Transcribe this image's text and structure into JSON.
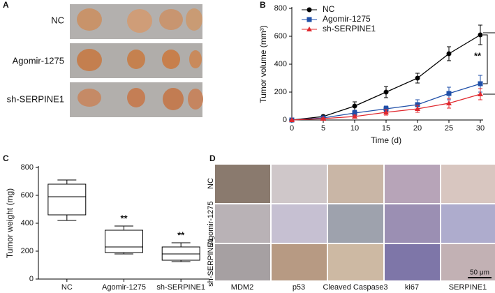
{
  "panel_a": {
    "label": "A",
    "rows": [
      "NC",
      "Agomir-1275",
      "sh-SERPINE1"
    ]
  },
  "chart_data": [
    {
      "type": "line",
      "panel": "B",
      "xlabel": "Time (d)",
      "ylabel": "Tumor volume (mm³)",
      "x": [
        0,
        5,
        10,
        15,
        20,
        25,
        30
      ],
      "xlim": [
        0,
        30
      ],
      "xticks": [
        0,
        5,
        10,
        15,
        20,
        25,
        30
      ],
      "ylim": [
        0,
        800
      ],
      "yticks": [
        0,
        200,
        400,
        600,
        800
      ],
      "legend": "upper left",
      "series": [
        {
          "name": "NC",
          "color": "#000000",
          "marker": "circle",
          "values": [
            0,
            25,
            100,
            200,
            300,
            475,
            610
          ],
          "errors": [
            0,
            10,
            30,
            40,
            35,
            50,
            70
          ]
        },
        {
          "name": "Agomir-1275",
          "color": "#1f4fa8",
          "marker": "square",
          "values": [
            0,
            15,
            50,
            80,
            110,
            190,
            260
          ],
          "errors": [
            0,
            8,
            20,
            20,
            35,
            45,
            60
          ]
        },
        {
          "name": "sh-SERPINE1",
          "color": "#e0282e",
          "marker": "triangle",
          "values": [
            0,
            10,
            25,
            55,
            80,
            120,
            185
          ],
          "errors": [
            0,
            5,
            10,
            20,
            25,
            35,
            40
          ]
        }
      ],
      "annotations": [
        "**",
        "**"
      ]
    },
    {
      "type": "box",
      "panel": "C",
      "ylabel": "Tumor weight (mg)",
      "categories": [
        "NC",
        "Agomir-1275",
        "sh-SERPINE1"
      ],
      "ylim": [
        0,
        800
      ],
      "yticks": [
        0,
        200,
        400,
        600,
        800
      ],
      "color": "#000000",
      "boxes": [
        {
          "min": 420,
          "q1": 460,
          "median": 590,
          "q3": 680,
          "max": 710
        },
        {
          "min": 180,
          "q1": 190,
          "median": 230,
          "q3": 350,
          "max": 380
        },
        {
          "min": 125,
          "q1": 135,
          "median": 180,
          "q3": 230,
          "max": 260
        }
      ],
      "annotations": [
        "**",
        "**"
      ]
    }
  ],
  "panel_d": {
    "label": "D",
    "rows": [
      "NC",
      "Agomir-1275",
      "sh-SERPINE1"
    ],
    "columns": [
      "MDM2",
      "p53",
      "Cleaved Caspase3",
      "ki67",
      "SERPINE1"
    ],
    "scale_bar": "50 μm"
  }
}
